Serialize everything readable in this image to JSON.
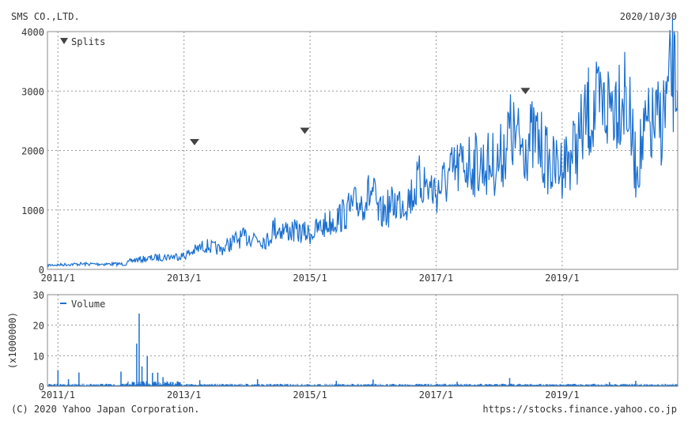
{
  "header": {
    "company": "SMS CO.,LTD.",
    "date": "2020/10/30"
  },
  "footer": {
    "copyright": "(C) 2020 Yahoo Japan Corporation.",
    "url": "https://stocks.finance.yahoo.co.jp"
  },
  "colors": {
    "line": "#1a6fd0",
    "grid": "#999999",
    "frame": "#888888",
    "marker": "#444444"
  },
  "chart_data": [
    {
      "type": "line",
      "title": "SMS CO.,LTD.",
      "legend": "Splits",
      "legend_placement": "top-left",
      "xlim": [
        "2010-11",
        "2020-11"
      ],
      "ylim": [
        0,
        4000
      ],
      "yticks": [
        0,
        1000,
        2000,
        3000,
        4000
      ],
      "xticks": [
        "2011/1",
        "2013/1",
        "2015/1",
        "2017/1",
        "2019/1"
      ],
      "grid": true,
      "series": [
        {
          "name": "Price",
          "points": [
            [
              "2010-11",
              70
            ],
            [
              "2011-05",
              90
            ],
            [
              "2012-02",
              90
            ],
            [
              "2012-03",
              150
            ],
            [
              "2012-08",
              200
            ],
            [
              "2013-01",
              230
            ],
            [
              "2013-05",
              400
            ],
            [
              "2013-08",
              330
            ],
            [
              "2013-11",
              500
            ],
            [
              "2014-02",
              560
            ],
            [
              "2014-05",
              480
            ],
            [
              "2014-06",
              700
            ],
            [
              "2014-09",
              650
            ],
            [
              "2015-01",
              600
            ],
            [
              "2015-04",
              750
            ],
            [
              "2015-07",
              900
            ],
            [
              "2015-10",
              1100
            ],
            [
              "2016-01",
              1300
            ],
            [
              "2016-02",
              900
            ],
            [
              "2016-05",
              1100
            ],
            [
              "2016-08",
              1200
            ],
            [
              "2016-10",
              1500
            ],
            [
              "2017-01",
              1300
            ],
            [
              "2017-04",
              1600
            ],
            [
              "2017-07",
              1800
            ],
            [
              "2017-10",
              1750
            ],
            [
              "2018-01",
              1800
            ],
            [
              "2018-03",
              2300
            ],
            [
              "2018-05",
              2100
            ],
            [
              "2018-08",
              2200
            ],
            [
              "2018-11",
              1700
            ],
            [
              "2019-01",
              1750
            ],
            [
              "2019-04",
              2100
            ],
            [
              "2019-06",
              2600
            ],
            [
              "2019-09",
              2700
            ],
            [
              "2020-01",
              3050
            ],
            [
              "2020-02",
              2400
            ],
            [
              "2020-03",
              1700
            ],
            [
              "2020-05",
              2300
            ],
            [
              "2020-08",
              2500
            ],
            [
              "2020-10",
              3250
            ],
            [
              "2020-10-30",
              3000
            ]
          ]
        }
      ],
      "splits": [
        [
          "2013-03",
          2140
        ],
        [
          "2014-12",
          2330
        ],
        [
          "2018-06",
          3000
        ]
      ]
    },
    {
      "type": "bar",
      "legend": "Volume",
      "legend_placement": "top-left",
      "ylabel": "(x1000000)",
      "xlim": [
        "2010-11",
        "2020-11"
      ],
      "ylim": [
        0,
        30
      ],
      "yticks": [
        0,
        10,
        20,
        30
      ],
      "xticks": [
        "2011/1",
        "2013/1",
        "2015/1",
        "2017/1",
        "2019/1"
      ],
      "spikes": [
        [
          "2011-01",
          5.2
        ],
        [
          "2011-03",
          2.3
        ],
        [
          "2011-05",
          4.5
        ],
        [
          "2012-01",
          4.8
        ],
        [
          "2012-04",
          14
        ],
        [
          "2012-04-15",
          23.8
        ],
        [
          "2012-05",
          6.5
        ],
        [
          "2012-06",
          9.8
        ],
        [
          "2012-07",
          4.4
        ],
        [
          "2012-08",
          4.5
        ],
        [
          "2012-09",
          3
        ],
        [
          "2013-04",
          2
        ],
        [
          "2014-03",
          2.3
        ],
        [
          "2015-06",
          1.8
        ],
        [
          "2016-01",
          2.2
        ],
        [
          "2017-05",
          1.5
        ],
        [
          "2018-03",
          2.7
        ],
        [
          "2019-10",
          1.4
        ],
        [
          "2020-03",
          1.8
        ]
      ]
    }
  ]
}
